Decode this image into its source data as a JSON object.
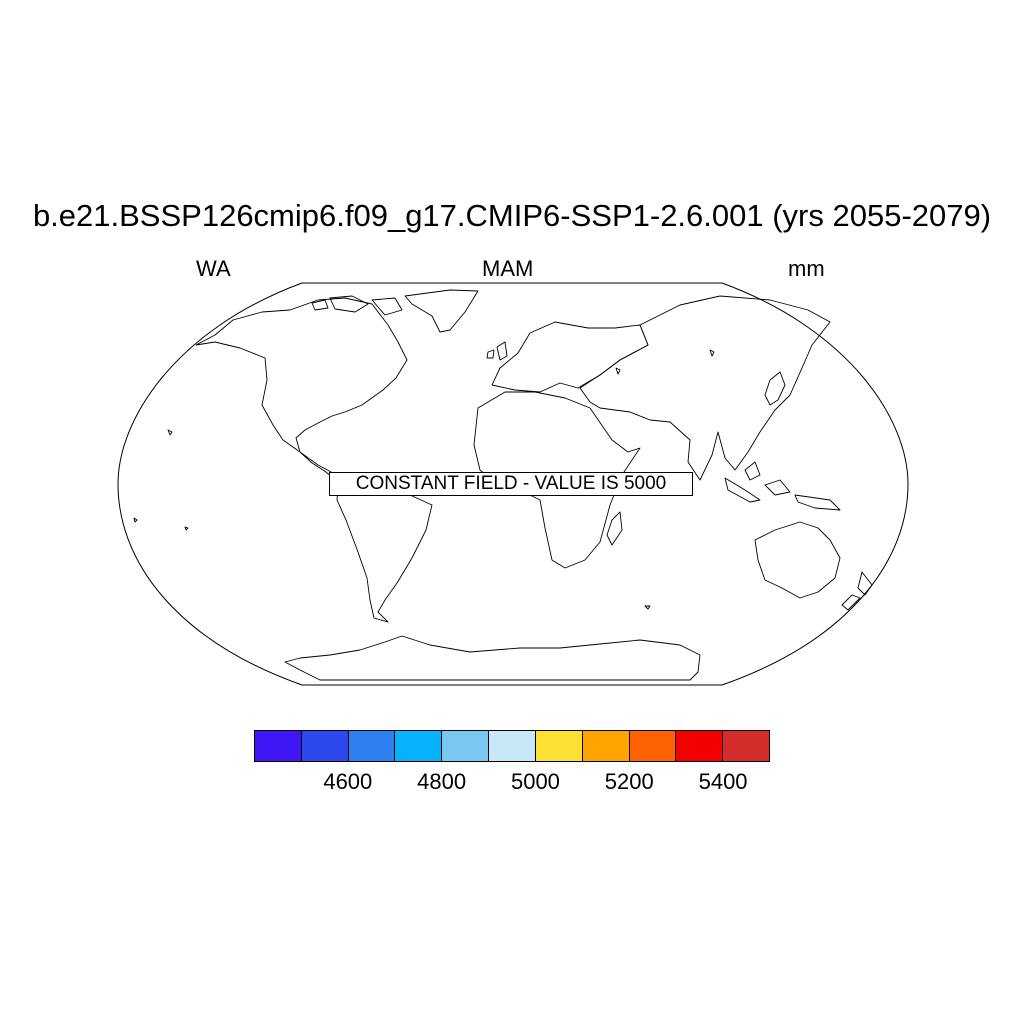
{
  "title": "b.e21.BSSP126cmip6.f09_g17.CMIP6-SSP1-2.6.001 (yrs 2055-2079)",
  "subtitle_left": "WA",
  "subtitle_center": "MAM",
  "subtitle_right": "mm",
  "annotation": "CONSTANT FIELD - VALUE IS 5000",
  "map": {
    "projection": "robinson",
    "features": [
      "coastlines"
    ]
  },
  "colorbar": {
    "colors": [
      "#4016f5",
      "#2d48ed",
      "#2e80f0",
      "#06b2fc",
      "#79c8f2",
      "#c8e8f8",
      "#fce134",
      "#ffa400",
      "#ff6200",
      "#f40000",
      "#d42b2b"
    ],
    "labels": [
      "4600",
      "4800",
      "5000",
      "5200",
      "5400"
    ]
  }
}
